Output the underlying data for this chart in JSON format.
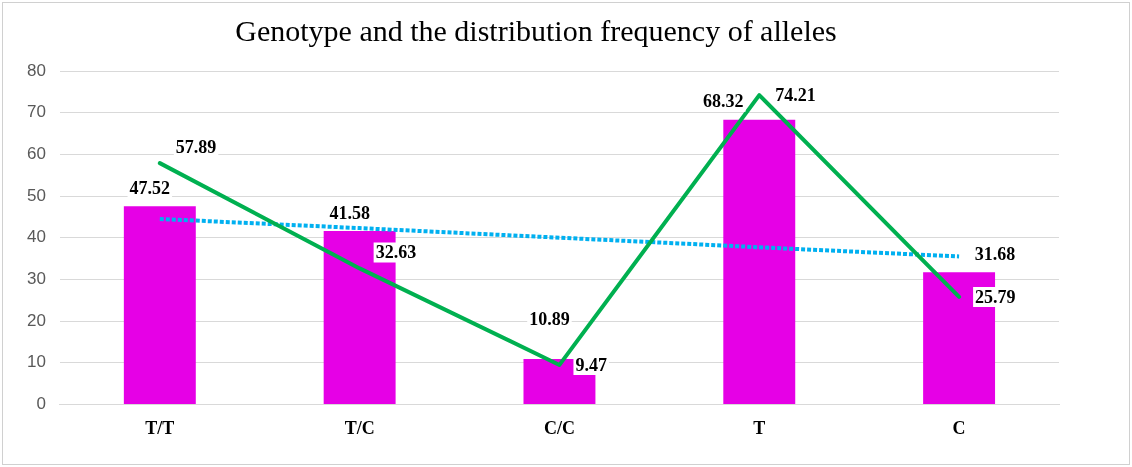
{
  "chart_data": {
    "type": "bar",
    "title": "Genotype and the distribution frequency of alleles",
    "categories": [
      "T/T",
      "T/C",
      "C/C",
      "T",
      "C"
    ],
    "series": [
      {
        "color": "#e600e6",
        "values": [
          47.52,
          41.58,
          10.89,
          68.32,
          31.68
        ],
        "value_labels": [
          "47.52",
          "41.58",
          "10.89",
          "68.32",
          "31.68"
        ]
      },
      {
        "type": "line",
        "color": "#00b050",
        "values": [
          57.89,
          32.63,
          9.47,
          74.21,
          25.79
        ],
        "value_labels": [
          "57.89",
          "32.63",
          "9.47",
          "74.21",
          "25.79"
        ],
        "marker": "none",
        "line_style": "solid"
      },
      {
        "type": "line",
        "color": "#00b0f0",
        "values": [
          44.5,
          42.3,
          40.0,
          37.7,
          35.5
        ],
        "marker": "none",
        "line_style": "dotted"
      }
    ],
    "ylim": [
      0,
      80
    ],
    "yticks": [
      0,
      10,
      20,
      30,
      40,
      50,
      60,
      70,
      80
    ],
    "grid": "y",
    "legend": false
  }
}
